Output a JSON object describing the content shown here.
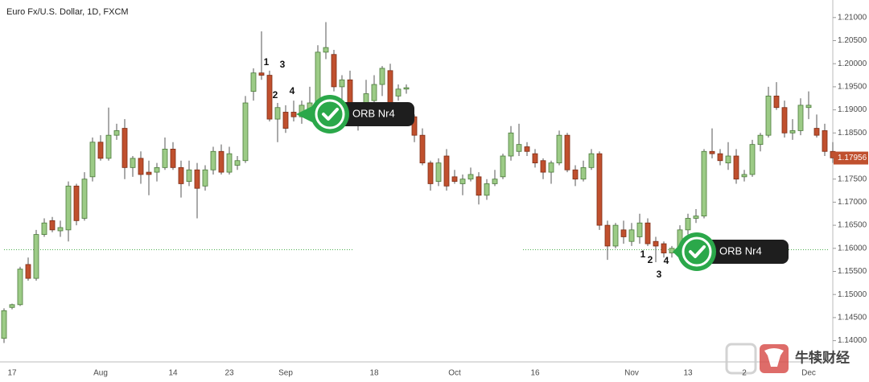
{
  "chart_data": {
    "type": "candlestick",
    "title": "Euro Fx/U.S. Dollar, 1D, FXCM",
    "categories": [
      null,
      "17",
      null,
      null,
      null,
      null,
      null,
      null,
      null,
      null,
      null,
      null,
      "Aug",
      null,
      null,
      null,
      null,
      null,
      null,
      null,
      null,
      "14",
      null,
      null,
      null,
      null,
      null,
      null,
      "23",
      null,
      null,
      null,
      null,
      null,
      null,
      "Sep",
      null,
      null,
      null,
      null,
      null,
      null,
      null,
      null,
      null,
      null,
      "18",
      null,
      null,
      null,
      null,
      null,
      null,
      null,
      null,
      null,
      "Oct",
      null,
      null,
      null,
      null,
      null,
      null,
      null,
      null,
      null,
      "16",
      null,
      null,
      null,
      null,
      null,
      null,
      null,
      null,
      null,
      null,
      null,
      "Nov",
      null,
      null,
      null,
      null,
      null,
      null,
      "13",
      null,
      null,
      null,
      null,
      null,
      null,
      "2",
      null,
      null,
      null,
      null,
      null,
      null,
      null,
      "Dec",
      null,
      null,
      null
    ],
    "open": [
      1.1405,
      1.1472,
      1.1478,
      1.1565,
      1.1535,
      1.163,
      1.166,
      1.1638,
      1.164,
      1.1735,
      1.1665,
      1.1755,
      1.183,
      1.1795,
      1.1845,
      1.186,
      1.1775,
      1.1795,
      1.1765,
      1.1765,
      1.1775,
      1.1815,
      1.1775,
      1.1745,
      1.177,
      1.1735,
      1.177,
      1.181,
      1.1765,
      1.178,
      1.179,
      1.194,
      1.198,
      1.1975,
      1.188,
      1.1895,
      1.1895,
      1.1885,
      1.19,
      1.191,
      1.2025,
      1.202,
      1.195,
      1.1965,
      1.1895,
      1.188,
      1.192,
      1.1955,
      1.1985,
      1.193,
      1.1945,
      1.1885,
      1.1845,
      1.1785,
      1.1745,
      1.18,
      1.1755,
      1.174,
      1.175,
      1.1755,
      1.1715,
      1.174,
      1.1755,
      1.18,
      1.181,
      1.182,
      1.1805,
      1.179,
      1.1765,
      1.1785,
      1.1845,
      1.177,
      1.175,
      1.1775,
      1.1805,
      1.165,
      1.1605,
      1.164,
      1.1615,
      1.1625,
      1.1655,
      1.1615,
      1.161,
      1.159,
      1.16,
      1.164,
      1.1665,
      1.167,
      1.181,
      1.1805,
      1.1785,
      1.18,
      1.1755,
      1.176,
      1.1825,
      1.1845,
      1.193,
      1.1905,
      1.185,
      1.1855,
      1.1905,
      1.186,
      1.1855,
      1.181
    ],
    "high": [
      1.147,
      1.148,
      1.156,
      1.158,
      1.164,
      1.1665,
      1.1668,
      1.166,
      1.1745,
      1.174,
      1.1765,
      1.184,
      1.1845,
      1.1905,
      1.187,
      1.188,
      1.18,
      1.181,
      1.179,
      1.1785,
      1.184,
      1.183,
      1.179,
      1.179,
      1.1785,
      1.178,
      1.182,
      1.1825,
      1.182,
      1.18,
      1.193,
      1.199,
      1.207,
      1.1985,
      1.1915,
      1.191,
      1.192,
      1.192,
      1.195,
      1.204,
      1.209,
      1.203,
      1.1975,
      1.1985,
      1.191,
      1.1965,
      1.1975,
      1.1995,
      1.2,
      1.1955,
      1.1955,
      1.189,
      1.186,
      1.179,
      1.1795,
      1.1815,
      1.177,
      1.176,
      1.1775,
      1.1765,
      1.175,
      1.177,
      1.1805,
      1.1865,
      1.187,
      1.183,
      1.1815,
      1.1795,
      1.179,
      1.1855,
      1.185,
      1.178,
      1.179,
      1.1815,
      1.181,
      1.166,
      1.1655,
      1.166,
      1.1655,
      1.1675,
      1.1665,
      1.1625,
      1.1615,
      1.1605,
      1.165,
      1.1675,
      1.1685,
      1.1815,
      1.186,
      1.1815,
      1.183,
      1.1815,
      1.177,
      1.1835,
      1.185,
      1.195,
      1.196,
      1.192,
      1.188,
      1.1925,
      1.194,
      1.189,
      1.187,
      1.183
    ],
    "low": [
      1.1395,
      1.1468,
      1.1475,
      1.153,
      1.153,
      1.1625,
      1.1635,
      1.1625,
      1.1615,
      1.165,
      1.166,
      1.1745,
      1.179,
      1.179,
      1.1835,
      1.175,
      1.1755,
      1.174,
      1.1715,
      1.1745,
      1.177,
      1.177,
      1.171,
      1.1735,
      1.1665,
      1.1725,
      1.176,
      1.176,
      1.176,
      1.177,
      1.1785,
      1.192,
      1.1965,
      1.1875,
      1.183,
      1.185,
      1.1875,
      1.187,
      1.189,
      1.19,
      1.201,
      1.194,
      1.1905,
      1.188,
      1.1855,
      1.187,
      1.19,
      1.193,
      1.188,
      1.192,
      1.1935,
      1.183,
      1.178,
      1.1725,
      1.1735,
      1.1725,
      1.174,
      1.1715,
      1.1745,
      1.1695,
      1.1705,
      1.1735,
      1.175,
      1.179,
      1.18,
      1.18,
      1.1775,
      1.175,
      1.174,
      1.178,
      1.1765,
      1.1735,
      1.1745,
      1.177,
      1.164,
      1.1575,
      1.16,
      1.161,
      1.1605,
      1.161,
      1.1605,
      1.157,
      1.158,
      1.158,
      1.1595,
      1.163,
      1.1655,
      1.1665,
      1.1795,
      1.178,
      1.177,
      1.174,
      1.1745,
      1.1755,
      1.181,
      1.184,
      1.19,
      1.184,
      1.1835,
      1.1845,
      1.188,
      1.184,
      1.18,
      1.1785
    ],
    "close": [
      1.1465,
      1.1478,
      1.1555,
      1.1535,
      1.163,
      1.1655,
      1.164,
      1.1645,
      1.1735,
      1.166,
      1.175,
      1.183,
      1.1795,
      1.1845,
      1.1855,
      1.1775,
      1.1795,
      1.176,
      1.176,
      1.1775,
      1.1815,
      1.1775,
      1.174,
      1.177,
      1.173,
      1.177,
      1.181,
      1.1765,
      1.1805,
      1.179,
      1.1915,
      1.198,
      1.1975,
      1.188,
      1.1905,
      1.186,
      1.1885,
      1.191,
      1.1915,
      1.2025,
      1.2035,
      1.195,
      1.1965,
      1.1895,
      1.188,
      1.1935,
      1.1955,
      1.199,
      1.1895,
      1.1945,
      1.1948,
      1.1845,
      1.1785,
      1.174,
      1.1785,
      1.1735,
      1.1745,
      1.175,
      1.176,
      1.1715,
      1.174,
      1.175,
      1.18,
      1.185,
      1.1825,
      1.181,
      1.1785,
      1.1765,
      1.1785,
      1.1845,
      1.177,
      1.175,
      1.1775,
      1.1805,
      1.165,
      1.1605,
      1.165,
      1.1625,
      1.164,
      1.1655,
      1.161,
      1.1605,
      1.159,
      1.16,
      1.164,
      1.1665,
      1.167,
      1.181,
      1.1805,
      1.179,
      1.18,
      1.175,
      1.176,
      1.1825,
      1.1845,
      1.193,
      1.1905,
      1.185,
      1.1855,
      1.191,
      1.191,
      1.1845,
      1.181,
      1.1796
    ],
    "up_color": "#9ccb86",
    "down_color": "#c0502e",
    "ylim": [
      1.1354,
      1.2138
    ],
    "yticks": [
      {
        "value": 1.14,
        "label": "1.14000"
      },
      {
        "value": 1.145,
        "label": "1.14500"
      },
      {
        "value": 1.15,
        "label": "1.15000"
      },
      {
        "value": 1.155,
        "label": "1.15500"
      },
      {
        "value": 1.16,
        "label": "1.16000"
      },
      {
        "value": 1.165,
        "label": "1.16500"
      },
      {
        "value": 1.17,
        "label": "1.17000"
      },
      {
        "value": 1.175,
        "label": "1.17500"
      },
      {
        "value": 1.18,
        "label": "1.18000"
      },
      {
        "value": 1.185,
        "label": "1.18500"
      },
      {
        "value": 1.19,
        "label": "1.19000"
      },
      {
        "value": 1.195,
        "label": "1.19500"
      },
      {
        "value": 1.2,
        "label": "1.20000"
      },
      {
        "value": 1.205,
        "label": "1.20500"
      },
      {
        "value": 1.21,
        "label": "1.21000"
      }
    ],
    "grid": false,
    "last_price": 1.17956,
    "reference_level": 1.1597,
    "annotations": [
      {
        "labels": [
          "1",
          "2",
          "3",
          "4"
        ],
        "callout": "ORB Nr4"
      },
      {
        "labels": [
          "1",
          "2",
          "3",
          "4"
        ],
        "callout": "ORB Nr4"
      }
    ],
    "watermark": "牛犊财经"
  }
}
